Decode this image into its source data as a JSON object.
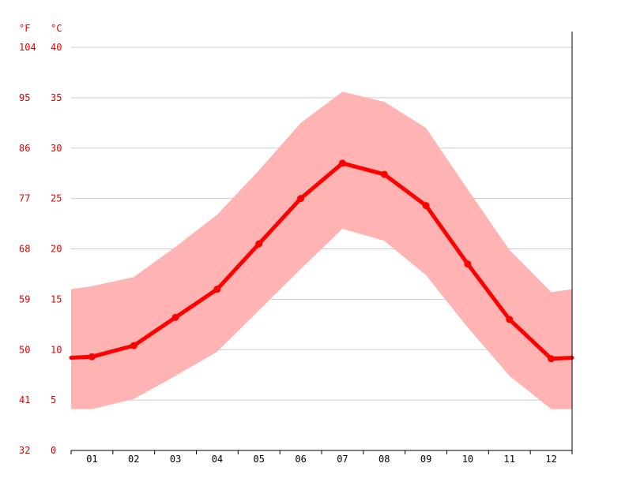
{
  "chart_data": {
    "type": "line",
    "units": {
      "fahrenheit": "°F",
      "celsius": "°C"
    },
    "categories": [
      "01",
      "02",
      "03",
      "04",
      "05",
      "06",
      "07",
      "08",
      "09",
      "10",
      "11",
      "12"
    ],
    "y_ticks_celsius": [
      "0",
      "5",
      "10",
      "15",
      "20",
      "25",
      "30",
      "35",
      "40"
    ],
    "y_ticks_fahrenheit": [
      "32",
      "41",
      "50",
      "59",
      "68",
      "77",
      "86",
      "95",
      "104"
    ],
    "ylim": [
      0,
      40
    ],
    "grid": true,
    "series": [
      {
        "role": "average",
        "values": [
          9.3,
          10.4,
          13.2,
          16.0,
          20.5,
          25.0,
          28.5,
          27.4,
          24.3,
          18.5,
          13.0,
          9.1
        ]
      },
      {
        "role": "band_max",
        "values": [
          16.3,
          17.2,
          20.2,
          23.4,
          27.8,
          32.5,
          35.6,
          34.6,
          32.0,
          25.9,
          19.9,
          15.7
        ]
      },
      {
        "role": "band_min",
        "values": [
          4.1,
          5.1,
          7.4,
          9.8,
          13.9,
          18.0,
          22.0,
          20.8,
          17.4,
          12.2,
          7.4,
          4.1
        ]
      }
    ],
    "edge_values": {
      "average": [
        9.2,
        9.2
      ],
      "band_max": [
        16.0,
        16.0
      ],
      "band_min": [
        4.1,
        4.1
      ]
    },
    "colors": {
      "line": "#ff0000",
      "band": "#ffb3b3",
      "y_labels": "#e00000"
    }
  }
}
